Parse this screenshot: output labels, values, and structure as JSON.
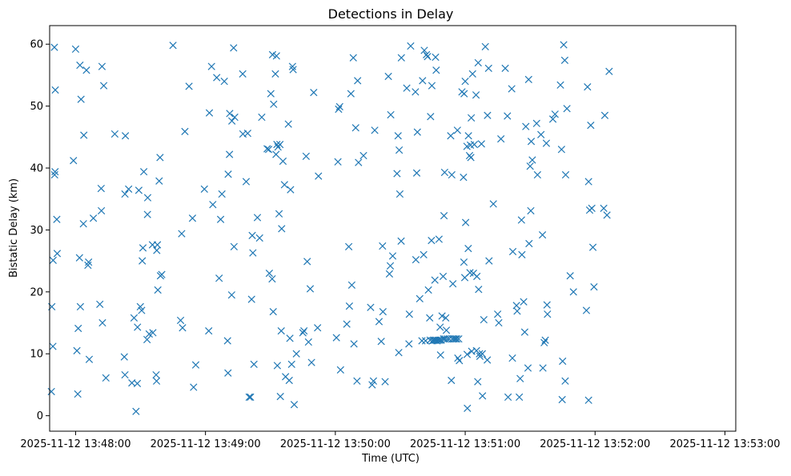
{
  "chart_data": {
    "type": "scatter",
    "title": "Detections in Delay",
    "xlabel": "Time (UTC)",
    "ylabel": "Bistatic Delay (km)",
    "x_format": "seconds after 13:47:00 UTC on 2025-11-12",
    "x_ticks": [
      "2025-11-12 13:48:00",
      "2025-11-12 13:49:00",
      "2025-11-12 13:50:00",
      "2025-11-12 13:51:00",
      "2025-11-12 13:52:00",
      "2025-11-12 13:53:00"
    ],
    "y_ticks": [
      "0",
      "10",
      "20",
      "30",
      "40",
      "50",
      "60"
    ],
    "xlim": [
      "2025-11-12 13:47:48",
      "2025-11-12 13:53:05"
    ],
    "ylim": [
      -2.5,
      63
    ],
    "grid": false,
    "legend": "none",
    "marker": "x",
    "color": "#1f77b4",
    "points": [
      [
        "13:47:48.8",
        3.9
      ],
      [
        "13:47:49.0",
        17.6
      ],
      [
        "13:47:49.5",
        11.2
      ],
      [
        "13:47:49.6",
        25.1
      ],
      [
        "13:47:50.2",
        59.5
      ],
      [
        "13:47:50.3",
        38.9
      ],
      [
        "13:47:50.5",
        39.4
      ],
      [
        "13:47:50.6",
        52.6
      ],
      [
        "13:47:51.3",
        31.7
      ],
      [
        "13:47:51.5",
        26.2
      ],
      [
        "13:47:59.0",
        41.2
      ],
      [
        "13:48:00.0",
        59.2
      ],
      [
        "13:48:00.6",
        10.5
      ],
      [
        "13:48:01.0",
        3.5
      ],
      [
        "13:48:01.2",
        14.1
      ],
      [
        "13:48:01.8",
        25.5
      ],
      [
        "13:48:02.0",
        56.6
      ],
      [
        "13:48:02.2",
        17.6
      ],
      [
        "13:48:02.5",
        51.1
      ],
      [
        "13:48:03.6",
        31.0
      ],
      [
        "13:48:03.8",
        45.3
      ],
      [
        "13:48:05.0",
        55.8
      ],
      [
        "13:48:05.7",
        24.3
      ],
      [
        "13:48:06.0",
        24.8
      ],
      [
        "13:48:06.3",
        9.1
      ],
      [
        "13:48:08.2",
        31.9
      ],
      [
        "13:48:11.2",
        18.0
      ],
      [
        "13:48:11.8",
        36.7
      ],
      [
        "13:48:11.9",
        33.1
      ],
      [
        "13:48:12.2",
        56.4
      ],
      [
        "13:48:12.4",
        15.0
      ],
      [
        "13:48:13.0",
        53.3
      ],
      [
        "13:48:14.0",
        6.1
      ],
      [
        "13:48:18.1",
        45.5
      ],
      [
        "13:48:22.5",
        9.5
      ],
      [
        "13:48:22.8",
        6.6
      ],
      [
        "13:48:22.8",
        35.8
      ],
      [
        "13:48:23.0",
        45.2
      ],
      [
        "13:48:24.5",
        36.6
      ],
      [
        "13:48:26.0",
        5.3
      ],
      [
        "13:48:27.0",
        15.8
      ],
      [
        "13:48:27.9",
        0.7
      ],
      [
        "13:48:28.5",
        5.2
      ],
      [
        "13:48:28.6",
        14.3
      ],
      [
        "13:48:29.2",
        36.4
      ],
      [
        "13:48:29.9",
        17.6
      ],
      [
        "13:48:30.5",
        17.0
      ],
      [
        "13:48:30.8",
        25.0
      ],
      [
        "13:48:31.1",
        27.1
      ],
      [
        "13:48:31.5",
        39.4
      ],
      [
        "13:48:33.0",
        12.3
      ],
      [
        "13:48:33.2",
        32.5
      ],
      [
        "13:48:33.3",
        35.2
      ],
      [
        "13:48:34.0",
        13.2
      ],
      [
        "13:48:35.5",
        27.6
      ],
      [
        "13:48:35.7",
        13.4
      ],
      [
        "13:48:37.2",
        6.6
      ],
      [
        "13:48:37.4",
        5.6
      ],
      [
        "13:48:37.5",
        26.7
      ],
      [
        "13:48:37.8",
        27.6
      ],
      [
        "13:48:38.0",
        20.3
      ],
      [
        "13:48:38.6",
        37.9
      ],
      [
        "13:48:39.0",
        41.7
      ],
      [
        "13:48:39.2",
        22.6
      ],
      [
        "13:48:39.8",
        22.8
      ],
      [
        "13:48:45.0",
        59.8
      ],
      [
        "13:48:48.5",
        15.4
      ],
      [
        "13:48:49.0",
        29.4
      ],
      [
        "13:48:49.4",
        14.2
      ],
      [
        "13:48:50.5",
        45.9
      ],
      [
        "13:48:52.4",
        53.2
      ],
      [
        "13:48:54.0",
        31.9
      ],
      [
        "13:48:54.5",
        4.6
      ],
      [
        "13:48:55.5",
        8.2
      ],
      [
        "13:48:59.5",
        36.6
      ],
      [
        "13:49:01.5",
        13.7
      ],
      [
        "13:49:01.8",
        48.9
      ],
      [
        "13:49:02.8",
        56.4
      ],
      [
        "13:49:03.4",
        34.1
      ],
      [
        "13:49:05.2",
        54.6
      ],
      [
        "13:49:06.3",
        22.2
      ],
      [
        "13:49:07.0",
        31.7
      ],
      [
        "13:49:07.6",
        35.8
      ],
      [
        "13:49:08.7",
        54.0
      ],
      [
        "13:49:10.2",
        12.1
      ],
      [
        "13:49:10.4",
        6.9
      ],
      [
        "13:49:10.5",
        39.0
      ],
      [
        "13:49:11.1",
        42.2
      ],
      [
        "13:49:11.2",
        48.8
      ],
      [
        "13:49:12.1",
        19.5
      ],
      [
        "13:49:12.2",
        47.6
      ],
      [
        "13:49:13.0",
        59.4
      ],
      [
        "13:49:13.2",
        27.3
      ],
      [
        "13:49:13.5",
        48.2
      ],
      [
        "13:49:17.2",
        55.2
      ],
      [
        "13:49:17.3",
        45.5
      ],
      [
        "13:49:18.8",
        37.8
      ],
      [
        "13:49:19.5",
        45.6
      ],
      [
        "13:49:20.2",
        3.0
      ],
      [
        "13:49:20.8",
        3.0
      ],
      [
        "13:49:21.3",
        18.8
      ],
      [
        "13:49:21.6",
        29.1
      ],
      [
        "13:49:21.9",
        26.3
      ],
      [
        "13:49:22.4",
        8.3
      ],
      [
        "13:49:24.0",
        32.0
      ],
      [
        "13:49:25.0",
        28.7
      ],
      [
        "13:49:26.0",
        48.2
      ],
      [
        "13:49:28.5",
        43.1
      ],
      [
        "13:49:29.2",
        43.0
      ],
      [
        "13:49:29.5",
        23.0
      ],
      [
        "13:49:30.2",
        52.0
      ],
      [
        "13:49:30.8",
        22.1
      ],
      [
        "13:49:31.0",
        58.3
      ],
      [
        "13:49:31.3",
        16.8
      ],
      [
        "13:49:31.5",
        50.3
      ],
      [
        "13:49:32.3",
        55.2
      ],
      [
        "13:49:32.6",
        42.2
      ],
      [
        "13:49:32.8",
        58.1
      ],
      [
        "13:49:33.0",
        43.8
      ],
      [
        "13:49:33.2",
        8.1
      ],
      [
        "13:49:33.5",
        43.4
      ],
      [
        "13:49:34.0",
        32.6
      ],
      [
        "13:49:34.4",
        43.8
      ],
      [
        "13:49:34.6",
        3.1
      ],
      [
        "13:49:35.0",
        13.7
      ],
      [
        "13:49:35.2",
        30.2
      ],
      [
        "13:49:35.8",
        41.1
      ],
      [
        "13:49:36.5",
        37.3
      ],
      [
        "13:49:37.0",
        6.3
      ],
      [
        "13:49:38.3",
        47.1
      ],
      [
        "13:49:38.7",
        5.7
      ],
      [
        "13:49:39.0",
        12.5
      ],
      [
        "13:49:39.3",
        36.5
      ],
      [
        "13:49:39.8",
        8.3
      ],
      [
        "13:49:40.2",
        56.4
      ],
      [
        "13:49:40.5",
        55.9
      ],
      [
        "13:49:41.0",
        1.8
      ],
      [
        "13:49:42.0",
        10.0
      ],
      [
        "13:49:45.0",
        13.4
      ],
      [
        "13:49:45.5",
        13.7
      ],
      [
        "13:49:46.5",
        41.9
      ],
      [
        "13:49:47.0",
        24.9
      ],
      [
        "13:49:47.6",
        11.9
      ],
      [
        "13:49:48.4",
        20.5
      ],
      [
        "13:49:49.0",
        8.6
      ],
      [
        "13:49:50.0",
        52.2
      ],
      [
        "13:49:51.8",
        14.2
      ],
      [
        "13:49:52.2",
        38.7
      ],
      [
        "13:50:00.5",
        12.6
      ],
      [
        "13:50:01.2",
        41.0
      ],
      [
        "13:50:01.5",
        49.5
      ],
      [
        "13:50:02.0",
        49.9
      ],
      [
        "13:50:02.4",
        7.4
      ],
      [
        "13:50:05.3",
        14.8
      ],
      [
        "13:50:06.2",
        27.3
      ],
      [
        "13:50:06.5",
        17.7
      ],
      [
        "13:50:07.2",
        52.0
      ],
      [
        "13:50:07.6",
        21.1
      ],
      [
        "13:50:08.3",
        57.8
      ],
      [
        "13:50:08.6",
        11.6
      ],
      [
        "13:50:09.4",
        46.5
      ],
      [
        "13:50:10.0",
        5.6
      ],
      [
        "13:50:10.3",
        54.1
      ],
      [
        "13:50:10.7",
        40.9
      ],
      [
        "13:50:13.0",
        42.0
      ],
      [
        "13:50:16.3",
        17.5
      ],
      [
        "13:50:17.0",
        5.0
      ],
      [
        "13:50:17.6",
        5.6
      ],
      [
        "13:50:18.2",
        46.1
      ],
      [
        "13:50:20.2",
        15.2
      ],
      [
        "13:50:21.2",
        12.0
      ],
      [
        "13:50:21.8",
        27.4
      ],
      [
        "13:50:22.0",
        16.8
      ],
      [
        "13:50:23.0",
        5.5
      ],
      [
        "13:50:24.5",
        54.8
      ],
      [
        "13:50:25.0",
        22.9
      ],
      [
        "13:50:25.4",
        24.2
      ],
      [
        "13:50:25.6",
        48.6
      ],
      [
        "13:50:26.5",
        25.8
      ],
      [
        "13:50:28.5",
        39.1
      ],
      [
        "13:50:29.0",
        45.2
      ],
      [
        "13:50:29.3",
        10.2
      ],
      [
        "13:50:29.5",
        42.9
      ],
      [
        "13:50:29.8",
        35.8
      ],
      [
        "13:50:30.4",
        28.2
      ],
      [
        "13:50:30.5",
        57.8
      ],
      [
        "13:50:33.0",
        52.9
      ],
      [
        "13:50:34.0",
        11.6
      ],
      [
        "13:50:34.2",
        16.4
      ],
      [
        "13:50:34.8",
        59.7
      ],
      [
        "13:50:37.0",
        52.3
      ],
      [
        "13:50:37.2",
        25.2
      ],
      [
        "13:50:37.6",
        39.2
      ],
      [
        "13:50:37.9",
        45.8
      ],
      [
        "13:50:39.0",
        18.9
      ],
      [
        "13:50:40.0",
        12.1
      ],
      [
        "13:50:40.3",
        54.1
      ],
      [
        "13:50:40.8",
        26.0
      ],
      [
        "13:50:41.1",
        59.0
      ],
      [
        "13:50:41.7",
        12.1
      ],
      [
        "13:50:42.1",
        58.3
      ],
      [
        "13:50:42.6",
        58.0
      ],
      [
        "13:50:43.0",
        20.3
      ],
      [
        "13:50:43.6",
        15.8
      ],
      [
        "13:50:43.8",
        12.2
      ],
      [
        "13:50:44.0",
        48.3
      ],
      [
        "13:50:44.4",
        28.3
      ],
      [
        "13:50:44.6",
        53.3
      ],
      [
        "13:50:44.9",
        12.1
      ],
      [
        "13:50:45.4",
        12.2
      ],
      [
        "13:50:45.8",
        12.2
      ],
      [
        "13:50:46.0",
        21.9
      ],
      [
        "13:50:46.3",
        57.9
      ],
      [
        "13:50:46.5",
        12.2
      ],
      [
        "13:50:46.6",
        55.8
      ],
      [
        "13:50:47.0",
        12.1
      ],
      [
        "13:50:47.5",
        12.2
      ],
      [
        "13:50:47.9",
        28.5
      ],
      [
        "13:50:48.2",
        12.2
      ],
      [
        "13:50:48.4",
        14.3
      ],
      [
        "13:50:48.6",
        9.8
      ],
      [
        "13:50:48.9",
        12.2
      ],
      [
        "13:50:49.3",
        16.1
      ],
      [
        "13:50:49.8",
        22.5
      ],
      [
        "13:50:50.0",
        12.4
      ],
      [
        "13:50:50.2",
        32.3
      ],
      [
        "13:50:50.5",
        39.3
      ],
      [
        "13:50:50.7",
        12.4
      ],
      [
        "13:50:51.0",
        15.8
      ],
      [
        "13:50:51.3",
        13.8
      ],
      [
        "13:50:51.7",
        12.4
      ],
      [
        "13:50:52.6",
        12.4
      ],
      [
        "13:50:53.3",
        45.2
      ],
      [
        "13:50:53.6",
        5.7
      ],
      [
        "13:50:53.8",
        38.9
      ],
      [
        "13:50:54.0",
        12.4
      ],
      [
        "13:50:54.3",
        21.3
      ],
      [
        "13:50:54.8",
        12.4
      ],
      [
        "13:50:55.5",
        12.4
      ],
      [
        "13:50:56.1",
        12.4
      ],
      [
        "13:50:56.4",
        46.1
      ],
      [
        "13:50:56.6",
        9.3
      ],
      [
        "13:50:57.0",
        12.4
      ],
      [
        "13:50:57.3",
        8.9
      ],
      [
        "13:50:58.5",
        52.3
      ],
      [
        "13:50:59.2",
        38.5
      ],
      [
        "13:50:59.4",
        24.8
      ],
      [
        "13:50:59.5",
        52.0
      ],
      [
        "13:50:59.8",
        22.3
      ],
      [
        "13:51:00.0",
        54.0
      ],
      [
        "13:51:00.2",
        31.2
      ],
      [
        "13:51:00.8",
        43.5
      ],
      [
        "13:51:00.9",
        9.9
      ],
      [
        "13:51:01.0",
        1.2
      ],
      [
        "13:51:01.4",
        27.0
      ],
      [
        "13:51:01.5",
        45.2
      ],
      [
        "13:51:02.0",
        42.0
      ],
      [
        "13:51:02.2",
        23.1
      ],
      [
        "13:51:02.4",
        43.7
      ],
      [
        "13:51:02.6",
        41.7
      ],
      [
        "13:51:02.8",
        48.1
      ],
      [
        "13:51:03.0",
        10.4
      ],
      [
        "13:51:03.4",
        55.2
      ],
      [
        "13:51:03.8",
        23.0
      ],
      [
        "13:51:04.2",
        43.8
      ],
      [
        "13:51:05.0",
        51.8
      ],
      [
        "13:51:05.2",
        10.5
      ],
      [
        "13:51:05.4",
        22.5
      ],
      [
        "13:51:05.8",
        5.5
      ],
      [
        "13:51:06.0",
        57.0
      ],
      [
        "13:51:06.2",
        20.4
      ],
      [
        "13:51:06.6",
        10.0
      ],
      [
        "13:51:06.8",
        9.6
      ],
      [
        "13:51:07.5",
        43.9
      ],
      [
        "13:51:07.9",
        10.0
      ],
      [
        "13:51:08.0",
        3.2
      ],
      [
        "13:51:08.6",
        15.5
      ],
      [
        "13:51:09.3",
        59.6
      ],
      [
        "13:51:10.2",
        9.0
      ],
      [
        "13:51:10.3",
        48.5
      ],
      [
        "13:51:10.8",
        56.1
      ],
      [
        "13:51:11.0",
        25.0
      ],
      [
        "13:51:13.0",
        34.2
      ],
      [
        "13:51:15.0",
        16.4
      ],
      [
        "13:51:15.5",
        15.0
      ],
      [
        "13:51:16.5",
        44.7
      ],
      [
        "13:51:18.5",
        56.1
      ],
      [
        "13:51:19.5",
        48.4
      ],
      [
        "13:51:19.8",
        3.0
      ],
      [
        "13:51:21.5",
        52.8
      ],
      [
        "13:51:21.8",
        9.3
      ],
      [
        "13:51:22.0",
        26.5
      ],
      [
        "13:51:23.7",
        17.8
      ],
      [
        "13:51:24.0",
        16.9
      ],
      [
        "13:51:25.0",
        3.0
      ],
      [
        "13:51:25.4",
        6.0
      ],
      [
        "13:51:26.0",
        31.6
      ],
      [
        "13:51:26.2",
        26.0
      ],
      [
        "13:51:27.0",
        18.4
      ],
      [
        "13:51:27.5",
        13.5
      ],
      [
        "13:51:28.0",
        46.7
      ],
      [
        "13:51:29.0",
        7.7
      ],
      [
        "13:51:29.3",
        54.3
      ],
      [
        "13:51:29.5",
        27.8
      ],
      [
        "13:51:30.0",
        40.3
      ],
      [
        "13:51:30.3",
        33.1
      ],
      [
        "13:51:30.5",
        44.3
      ],
      [
        "13:51:31.0",
        41.3
      ],
      [
        "13:51:33.0",
        47.2
      ],
      [
        "13:51:33.4",
        38.9
      ],
      [
        "13:51:35.0",
        45.4
      ],
      [
        "13:51:35.7",
        29.2
      ],
      [
        "13:51:35.9",
        7.7
      ],
      [
        "13:51:36.5",
        11.8
      ],
      [
        "13:51:37.0",
        12.2
      ],
      [
        "13:51:37.5",
        44.0
      ],
      [
        "13:51:37.8",
        17.9
      ],
      [
        "13:51:38.0",
        16.4
      ],
      [
        "13:51:40.5",
        47.9
      ],
      [
        "13:51:41.5",
        48.7
      ],
      [
        "13:51:44.0",
        53.4
      ],
      [
        "13:51:44.5",
        43.0
      ],
      [
        "13:51:44.8",
        2.6
      ],
      [
        "13:51:45.0",
        8.8
      ],
      [
        "13:51:45.5",
        59.9
      ],
      [
        "13:51:46.0",
        57.4
      ],
      [
        "13:51:46.2",
        5.6
      ],
      [
        "13:51:46.4",
        38.9
      ],
      [
        "13:51:47.0",
        49.6
      ],
      [
        "13:51:48.5",
        22.6
      ],
      [
        "13:51:50.0",
        20.0
      ],
      [
        "13:51:56.0",
        17.0
      ],
      [
        "13:51:56.5",
        53.1
      ],
      [
        "13:51:57.0",
        2.5
      ],
      [
        "13:51:57.0",
        37.8
      ],
      [
        "13:51:57.5",
        33.2
      ],
      [
        "13:51:58.0",
        46.9
      ],
      [
        "13:51:58.5",
        33.5
      ],
      [
        "13:51:59.0",
        27.2
      ],
      [
        "13:51:59.5",
        20.8
      ],
      [
        "13:52:04.0",
        33.5
      ],
      [
        "13:52:04.5",
        48.5
      ],
      [
        "13:52:05.5",
        32.4
      ],
      [
        "13:52:06.5",
        55.6
      ]
    ]
  }
}
